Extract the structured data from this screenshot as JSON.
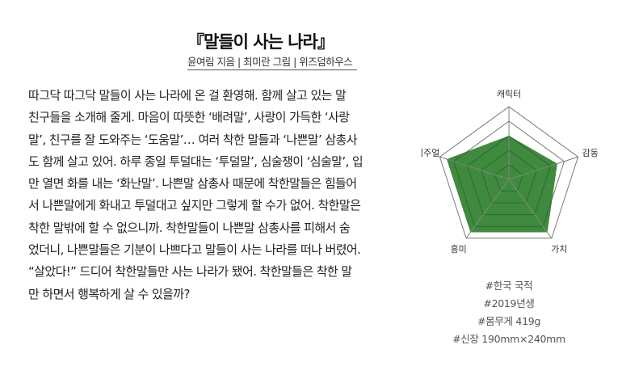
{
  "book": {
    "title": "『말들이 사는 나라』",
    "credits": "윤여림 지음 | 최미란 그림 | 위즈덤하우스"
  },
  "description": [
    "따그닥 따그닥 말들이 사는 나라에 온 걸 환영해. 함께 살고 있는 말",
    "친구들을 소개해 줄게. 마음이 따뜻한 ‘배려말’, 사랑이 가득한 ‘사랑",
    "말’, 친구를 잘 도와주는 ‘도움말’… 여러 착한 말들과 ‘나쁜말’ 삼총사",
    "도 함께 살고 있어. 하루 종일 투덜대는 ‘투덜말’, 심술쟁이 ‘심술말’, 입",
    "만 열면 화를 내는 ‘화난말’. 나쁜말 삼총사 때문에 착한말들은 힘들어",
    "서 나쁜말에게 화내고 투덜대고 싶지만 그렇게 할 수가 없어. 착한말은",
    "착한 말밖에 할 수 없으니까. 착한말들이 나쁜말 삼총사를 피해서 숨",
    "었더니, 나쁜말들은 기분이 나쁘다고 말들이 사는 나라를 떠나 버렸어.",
    "“살았다!” 드디어 착한말들만 사는 나라가 됐어. 착한말들은 착한 말",
    "만 하면서 행복하게 살 수 있을까?"
  ],
  "chart_data": {
    "type": "radar",
    "categories": [
      "캐릭터",
      "감동",
      "가치",
      "흥미",
      "비주얼"
    ],
    "values": [
      3,
      3.5,
      4.5,
      4.5,
      4.5
    ],
    "rlim": [
      0,
      5
    ],
    "levels": 5,
    "fill_color": "#3f8a3f",
    "grid_color": "#bbbbbb"
  },
  "tags": [
    "#한국 국적",
    "#2019년생",
    "#몸무게 419g",
    "#신장 190mm×240mm"
  ]
}
